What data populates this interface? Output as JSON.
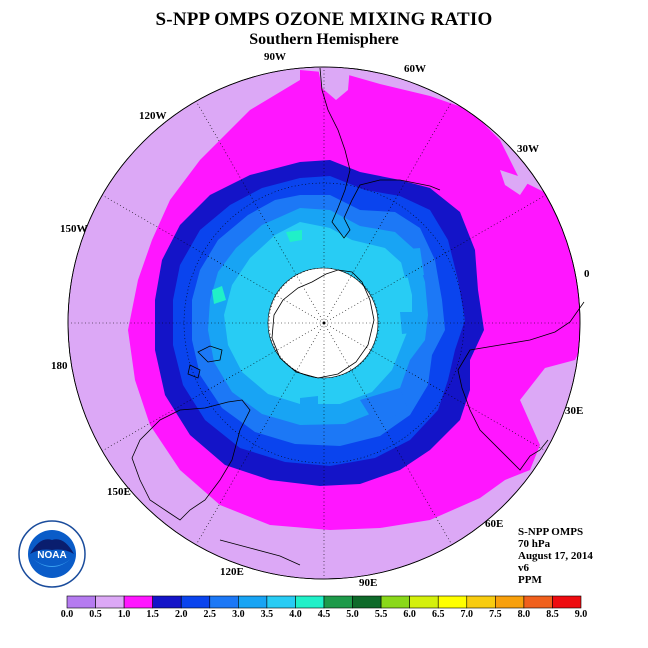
{
  "title": "S-NPP OMPS OZONE MIXING RATIO",
  "subtitle": "Southern Hemisphere",
  "longitude_labels": [
    "90W",
    "60W",
    "30W",
    "120W",
    "150W",
    "0",
    "180",
    "30E",
    "150E",
    "60E",
    "120E",
    "90E"
  ],
  "info": {
    "instrument": "S-NPP OMPS",
    "level": "70 hPa",
    "date": "August 17, 2014",
    "version": "v6",
    "units": "PPM"
  },
  "logo": {
    "text": "NOAA"
  },
  "colorbar": {
    "ticks": [
      "0.0",
      "0.5",
      "1.0",
      "1.5",
      "2.0",
      "2.5",
      "3.0",
      "3.5",
      "4.0",
      "4.5",
      "5.0",
      "5.5",
      "6.0",
      "6.5",
      "7.0",
      "7.5",
      "8.0",
      "8.5",
      "9.0"
    ],
    "colors": [
      "#b57bf0",
      "#dca8f6",
      "#ff16ff",
      "#1414c8",
      "#0a44ee",
      "#1c78f6",
      "#18a4f4",
      "#28ccf4",
      "#20f0c8",
      "#1e9a4a",
      "#0e6a2a",
      "#8ad81a",
      "#d4f00c",
      "#ffff00",
      "#f8cc10",
      "#f8a00c",
      "#f0601c",
      "#ee0c10",
      "#8a5a3a"
    ]
  },
  "colors": {
    "background": "#ffffff",
    "missing_polar": "#ffffff"
  }
}
